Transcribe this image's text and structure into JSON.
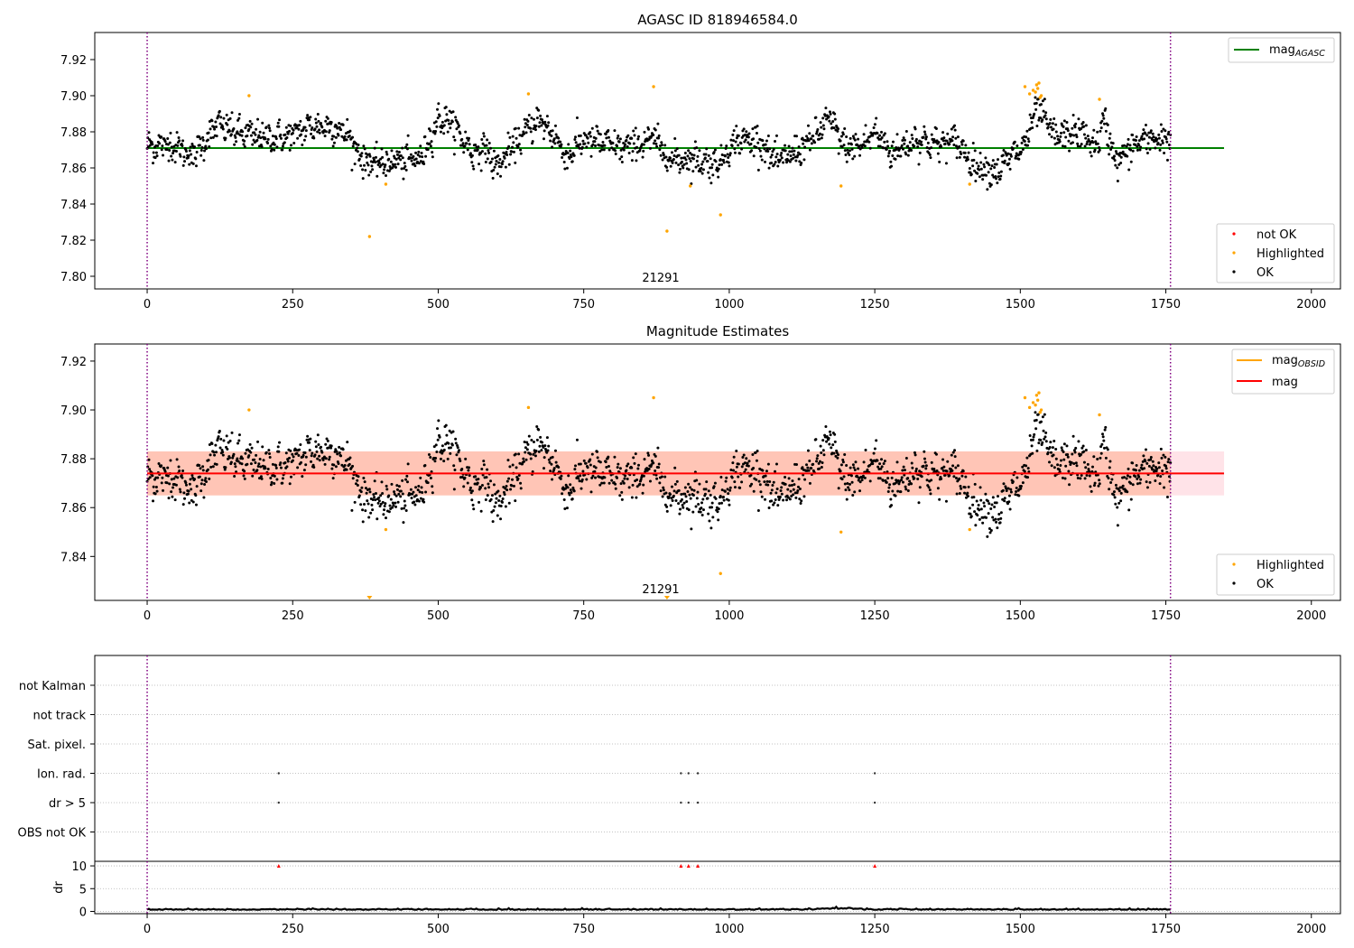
{
  "chart_data": [
    {
      "type": "scatter",
      "title": "AGASC ID 818946584.0",
      "xlim": [
        -90,
        2050
      ],
      "ylim": [
        7.793,
        7.935
      ],
      "x_ticks": [
        0,
        250,
        500,
        750,
        1000,
        1250,
        1500,
        1750,
        2000
      ],
      "y_ticks": [
        7.8,
        7.82,
        7.84,
        7.86,
        7.88,
        7.9,
        7.92
      ],
      "grid": false,
      "annotation": "21291",
      "vlines": [
        0,
        1758
      ],
      "hline": {
        "name": "mag_AGASC",
        "y": 7.871,
        "x_range": [
          0,
          1850
        ],
        "color": "#008000"
      },
      "series": [
        {
          "name": "not OK",
          "color": "#ff0000",
          "x": [],
          "y": []
        },
        {
          "name": "Highlighted",
          "color": "#ffa500",
          "x": [
            175,
            382,
            410,
            655,
            870,
            893,
            933,
            985,
            1192,
            1413,
            1508,
            1516,
            1522,
            1526,
            1528,
            1530,
            1532,
            1534,
            1536,
            1636
          ],
          "y": [
            7.9,
            7.822,
            7.851,
            7.901,
            7.905,
            7.825,
            7.85,
            7.834,
            7.85,
            7.851,
            7.905,
            7.901,
            7.903,
            7.902,
            7.906,
            7.904,
            7.907,
            7.899,
            7.9,
            7.898
          ]
        },
        {
          "name": "OK",
          "color": "#000000",
          "smooth_profile": {
            "x": [
              0,
              40,
              80,
              120,
              160,
              200,
              240,
              280,
              320,
              345,
              370,
              395,
              430,
              470,
              500,
              520,
              560,
              580,
              600,
              640,
              670,
              700,
              720,
              750,
              780,
              820,
              850,
              870,
              900,
              940,
              980,
              1010,
              1050,
              1080,
              1120,
              1150,
              1170,
              1200,
              1230,
              1250,
              1280,
              1320,
              1360,
              1390,
              1420,
              1460,
              1490,
              1505,
              1530,
              1560,
              1600,
              1630,
              1645,
              1665,
              1700,
              1740,
              1758
            ],
            "y": [
              7.872,
              7.873,
              7.867,
              7.884,
              7.879,
              7.877,
              7.877,
              7.883,
              7.883,
              7.878,
              7.865,
              7.862,
              7.864,
              7.865,
              7.887,
              7.886,
              7.868,
              7.872,
              7.86,
              7.876,
              7.887,
              7.878,
              7.866,
              7.876,
              7.874,
              7.871,
              7.874,
              7.876,
              7.865,
              7.865,
              7.862,
              7.875,
              7.876,
              7.863,
              7.87,
              7.878,
              7.888,
              7.871,
              7.873,
              7.88,
              7.868,
              7.876,
              7.873,
              7.875,
              7.862,
              7.858,
              7.868,
              7.871,
              7.893,
              7.877,
              7.88,
              7.872,
              7.886,
              7.863,
              7.874,
              7.877,
              7.874
            ]
          },
          "scatter": 0.0075,
          "count": 1750
        }
      ],
      "legend": [
        {
          "label_main": "mag",
          "label_sub": "AGASC",
          "color": "#008000",
          "kind": "line",
          "location": "top-right"
        },
        {
          "label": "not OK",
          "color": "#ff0000",
          "kind": "marker",
          "location": "bottom-right"
        },
        {
          "label": "Highlighted",
          "color": "#ffa500",
          "kind": "marker",
          "location": "bottom-right"
        },
        {
          "label": "OK",
          "color": "#000000",
          "kind": "marker",
          "location": "bottom-right"
        }
      ]
    },
    {
      "type": "scatter",
      "title": "Magnitude Estimates",
      "xlim": [
        -90,
        2050
      ],
      "ylim": [
        7.822,
        7.927
      ],
      "x_ticks": [
        0,
        250,
        500,
        750,
        1000,
        1250,
        1500,
        1750,
        2000
      ],
      "y_ticks": [
        7.84,
        7.86,
        7.88,
        7.9,
        7.92
      ],
      "grid": false,
      "annotation": "21291",
      "vlines": [
        0,
        1758
      ],
      "hline": {
        "name": "mag",
        "y": 7.874,
        "x_range": [
          0,
          1850
        ],
        "color": "#ff0000"
      },
      "bands": [
        {
          "x_range": [
            0,
            1850
          ],
          "y_range": [
            7.865,
            7.883
          ],
          "color": "#ffc0cb"
        },
        {
          "x_range": [
            0,
            1758
          ],
          "y_range": [
            7.865,
            7.883
          ],
          "color": "#ffa07a"
        }
      ],
      "series": [
        {
          "name": "Highlighted",
          "color": "#ffa500",
          "x": [
            175,
            410,
            655,
            870,
            985,
            1192,
            1413,
            1508,
            1516,
            1522,
            1526,
            1528,
            1530,
            1532,
            1534,
            1536,
            1636
          ],
          "y": [
            7.9,
            7.851,
            7.901,
            7.905,
            7.833,
            7.85,
            7.851,
            7.905,
            7.901,
            7.903,
            7.902,
            7.906,
            7.904,
            7.907,
            7.899,
            7.9,
            7.898
          ]
        },
        {
          "name": "OK",
          "color": "#000000",
          "same_as_panel": 0
        }
      ],
      "clipped_markers": [
        {
          "x": 382,
          "color": "#ffa500"
        },
        {
          "x": 893,
          "color": "#ffa500"
        }
      ],
      "legend": [
        {
          "label_main": "mag",
          "label_sub": "OBSID",
          "color": "#ffa500",
          "kind": "line",
          "location": "top-right"
        },
        {
          "label": "mag",
          "color": "#ff0000",
          "kind": "line",
          "location": "top-right"
        },
        {
          "label": "Highlighted",
          "color": "#ffa500",
          "kind": "marker",
          "location": "bottom-right"
        },
        {
          "label": "OK",
          "color": "#000000",
          "kind": "marker",
          "location": "bottom-right"
        }
      ]
    },
    {
      "type": "scatter",
      "title": "",
      "xlim": [
        -90,
        2050
      ],
      "categories": [
        "OBS not OK",
        "dr > 5",
        "Ion. rad.",
        "Sat. pixel.",
        "not track",
        "not Kalman"
      ],
      "flag_points": {
        "dr > 5": [
          226,
          917,
          930,
          946,
          1250
        ],
        "Ion. rad.": [
          226,
          917,
          930,
          946,
          1250
        ]
      },
      "vlines": [
        0,
        1758
      ]
    },
    {
      "type": "line",
      "ylabel": "dr",
      "xlim": [
        -90,
        2050
      ],
      "ylim": [
        -0.5,
        11
      ],
      "x_ticks": [
        0,
        250,
        500,
        750,
        1000,
        1250,
        1500,
        1750,
        2000
      ],
      "y_ticks": [
        0,
        5,
        10
      ],
      "grid": true,
      "vlines": [
        0,
        1758
      ],
      "baseline": 0.35,
      "outliers": [
        226,
        917,
        930,
        946,
        1250
      ],
      "outlier_color": "#ff0000"
    }
  ]
}
